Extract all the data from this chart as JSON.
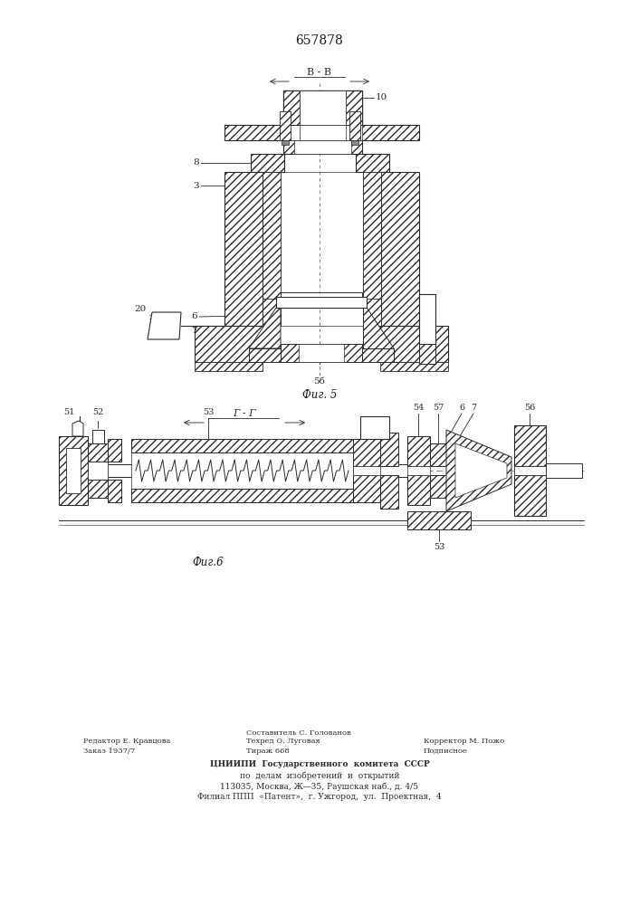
{
  "patent_number": "657878",
  "fig5_label": "В - В",
  "fig5_caption": "Фиг. 5",
  "fig6_label": "Г - Г",
  "fig6_caption": "Фиг.6",
  "bg_color": "#ffffff",
  "line_color": "#2a2a2a",
  "text_color": "#1a1a1a",
  "footer_col1_lines": [
    "Редактор Е. Кравцова",
    "Заказ 1937/7"
  ],
  "footer_col2_lines": [
    "Составитель С. Голованов",
    "Техред О. Луговая",
    "Тираж 668"
  ],
  "footer_col3_lines": [
    "Корректор М. Пожо",
    "Подписное"
  ],
  "footer_center_lines": [
    "ЦНИИПИ  Государственного  комитета  СССР",
    "по  делам  изобретений  и  открытий",
    "113035, Москва, Ж—35, Раушская наб., д. 4/5",
    "Филиал ППП  «Патент»,  г. Ужгород,  ул.  Проектная,  4"
  ]
}
